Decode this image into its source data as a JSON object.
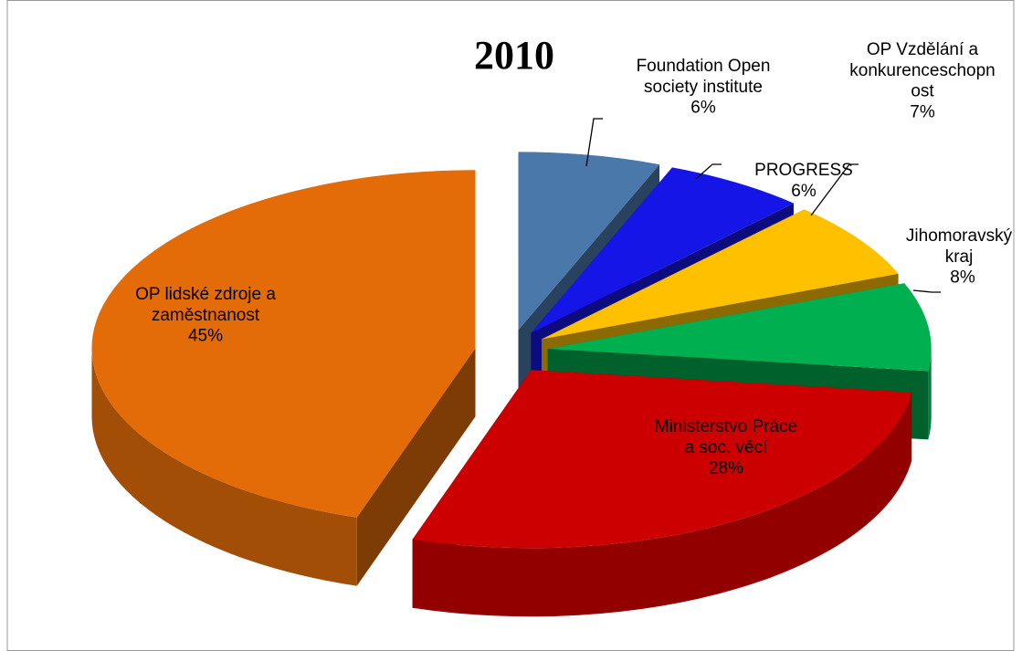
{
  "chart_data": {
    "type": "pie",
    "title": "2010",
    "categories": [
      "Foundation Open\nsociety institute",
      "PROGRESS",
      "OP Vzdělání a\nkonkurenceschopn\nost",
      "Jihomoravský\nkraj",
      "Ministerstvo Práce\na soc. věcí",
      "OP lidské zdroje a\nzaměstnanost"
    ],
    "values": [
      6,
      6,
      7,
      8,
      28,
      45
    ],
    "value_labels": [
      "6%",
      "6%",
      "7%",
      "8%",
      "28%",
      "45%"
    ],
    "colors": [
      "#4a78ab",
      "#1515e8",
      "#ffc000",
      "#00b050",
      "#cc0000",
      "#e36c09"
    ]
  }
}
